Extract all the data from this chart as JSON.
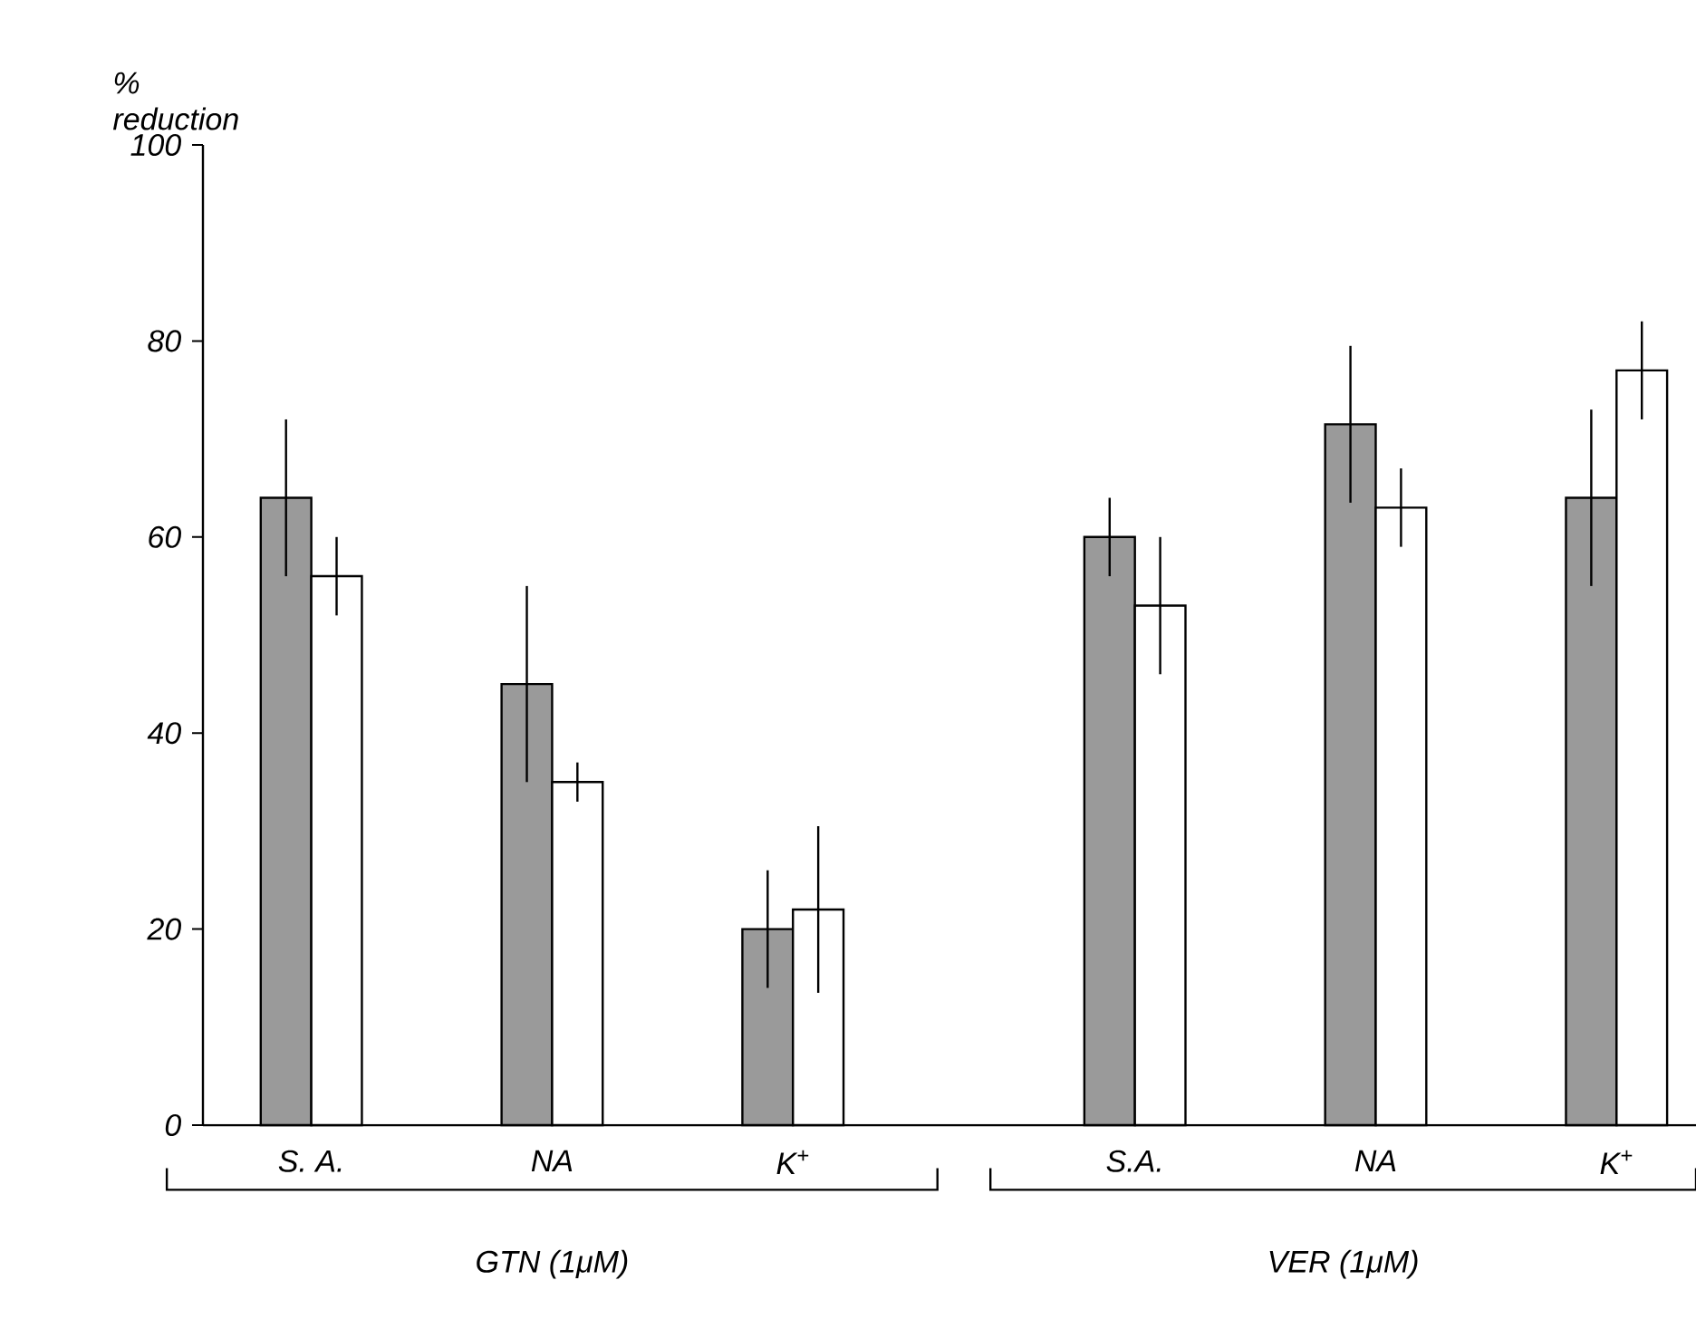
{
  "chart_data": {
    "type": "bar",
    "ylabel": "% reduction",
    "categories": [
      "S. A.",
      "NA",
      "K$^{+}$",
      "S.A.",
      "NA",
      "K$^{+}$"
    ],
    "series": [
      {
        "color": "#9a9a9a",
        "values": [
          64,
          45,
          20,
          60,
          71.5,
          64
        ],
        "errors": [
          8,
          10,
          6,
          4,
          8,
          9
        ]
      },
      {
        "color": "#ffffff",
        "values": [
          56,
          35,
          22,
          53,
          63,
          77
        ],
        "errors": [
          4,
          2,
          8.5,
          7,
          4,
          5
        ]
      }
    ],
    "ylim": [
      0,
      100
    ],
    "yticks": [
      0,
      20,
      40,
      60,
      80,
      100
    ],
    "annotations": [
      "GTN (1μM)",
      "VER (1μM)"
    ]
  }
}
